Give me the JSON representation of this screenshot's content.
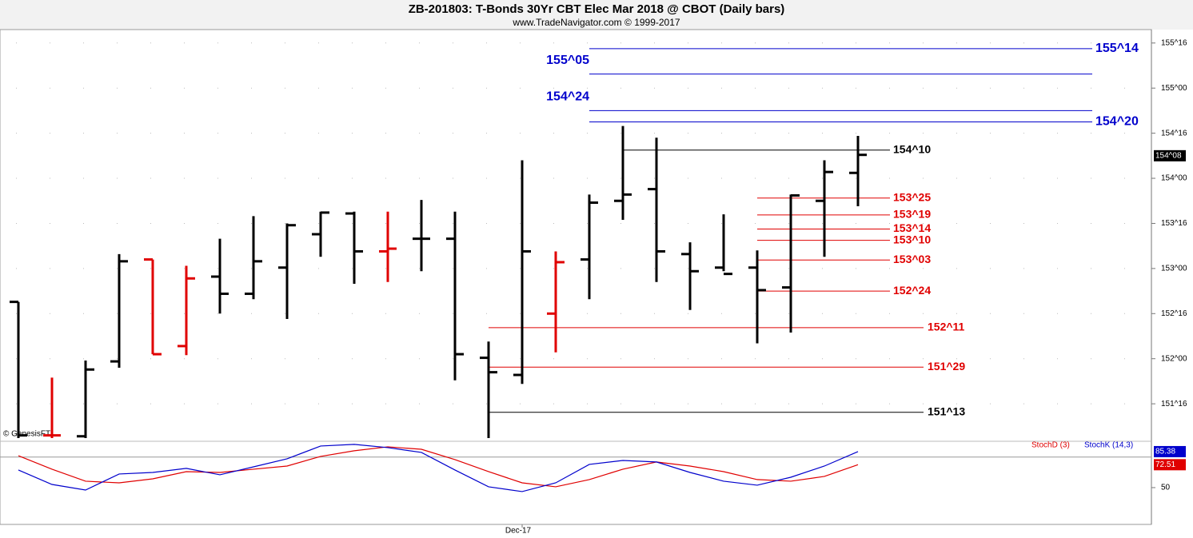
{
  "chart_data": {
    "type": "ohlc",
    "title": "ZB-201803:  T-Bonds 30Yr CBT Elec Mar 2018 @ CBOT  (Daily bars)",
    "subtitle": "www.TradeNavigator.com © 1999-2017",
    "watermark": "© GenesisFT",
    "categories": [
      null,
      null,
      null,
      null,
      null,
      null,
      null,
      null,
      null,
      null,
      null,
      null,
      null,
      null,
      null,
      "Dec-17",
      null,
      null,
      null,
      null,
      null,
      null,
      null,
      null,
      null,
      null
    ],
    "open": [
      152.63,
      151.15,
      151.14,
      151.97,
      153.1,
      152.14,
      152.91,
      152.72,
      153.01,
      153.38,
      153.61,
      153.19,
      153.33,
      153.33,
      152.01,
      151.82,
      152.5,
      153.1,
      153.75,
      153.88,
      153.16,
      153.01,
      153.01,
      152.79,
      153.75,
      154.06
    ],
    "high": [
      152.63,
      151.79,
      151.98,
      153.16,
      153.1,
      153.03,
      153.33,
      153.58,
      153.5,
      153.63,
      153.63,
      153.63,
      153.76,
      153.63,
      152.19,
      154.2,
      153.19,
      153.82,
      154.58,
      154.45,
      153.29,
      153.6,
      153.2,
      153.82,
      154.2,
      154.47
    ],
    "low": [
      151.12,
      151.12,
      151.12,
      151.9,
      152.05,
      152.04,
      152.5,
      152.66,
      152.44,
      153.13,
      152.83,
      152.85,
      152.97,
      151.76,
      151.12,
      151.72,
      152.07,
      152.66,
      153.54,
      152.85,
      152.54,
      152.97,
      152.17,
      152.29,
      153.13,
      153.69
    ],
    "close": [
      151.15,
      151.15,
      151.88,
      153.08,
      152.05,
      152.89,
      152.72,
      153.08,
      153.48,
      153.62,
      153.19,
      153.22,
      153.33,
      152.05,
      151.85,
      153.19,
      153.07,
      153.73,
      153.82,
      153.19,
      152.97,
      152.94,
      152.76,
      153.81,
      154.07,
      154.26
    ],
    "colors": [
      "#000000",
      "#e00000",
      "#000000",
      "#000000",
      "#e00000",
      "#e00000",
      "#000000",
      "#000000",
      "#000000",
      "#000000",
      "#000000",
      "#e00000",
      "#000000",
      "#000000",
      "#000000",
      "#000000",
      "#e00000",
      "#000000",
      "#000000",
      "#000000",
      "#000000",
      "#000000",
      "#000000",
      "#000000",
      "#000000",
      "#000000"
    ],
    "ylim": [
      151.12,
      155.64
    ],
    "yticks": [
      {
        "value": 151.5,
        "label": "151^16"
      },
      {
        "value": 152,
        "label": "152^00"
      },
      {
        "value": 152.5,
        "label": "152^16"
      },
      {
        "value": 153,
        "label": "153^00"
      },
      {
        "value": 153.5,
        "label": "153^16"
      },
      {
        "value": 154,
        "label": "154^00"
      },
      {
        "value": 154.5,
        "label": "154^16"
      },
      {
        "value": 155,
        "label": "155^00"
      },
      {
        "value": 155.5,
        "label": "155^16"
      }
    ],
    "last": {
      "value": 154.25,
      "label": "154^08"
    },
    "grid": true,
    "levels": [
      {
        "value": 155.4375,
        "label": "155^14",
        "color": "#0000cc"
      },
      {
        "value": 155.15625,
        "label": "155^05",
        "color": "#0000cc"
      },
      {
        "value": 154.75,
        "label": "154^24",
        "color": "#0000cc"
      },
      {
        "value": 154.625,
        "label": "154^20",
        "color": "#0000cc"
      },
      {
        "value": 154.3125,
        "label": "154^10",
        "color": "#000000"
      },
      {
        "value": 153.78125,
        "label": "153^25",
        "color": "#e00000"
      },
      {
        "value": 153.59375,
        "label": "153^19",
        "color": "#e00000"
      },
      {
        "value": 153.4375,
        "label": "153^14",
        "color": "#e00000"
      },
      {
        "value": 153.3125,
        "label": "153^10",
        "color": "#e00000"
      },
      {
        "value": 153.09375,
        "label": "153^03",
        "color": "#e00000"
      },
      {
        "value": 152.75,
        "label": "152^24",
        "color": "#e00000"
      },
      {
        "value": 152.34375,
        "label": "152^11",
        "color": "#e00000"
      },
      {
        "value": 151.90625,
        "label": "151^29",
        "color": "#e00000"
      },
      {
        "value": 151.40625,
        "label": "151^13",
        "color": "#000000"
      }
    ],
    "y2lim": [
      14.6,
      93.2
    ],
    "y2ticks": [
      50
    ],
    "overbought": 80,
    "series": [
      {
        "name": "StochD (3)",
        "color": "#e00000",
        "axis": "y2",
        "values": [
          81.4,
          68.1,
          56.3,
          54.7,
          58.6,
          65.7,
          64.9,
          68.1,
          71.2,
          80.7,
          86.2,
          90.1,
          87.7,
          77.5,
          65.7,
          54.7,
          50.8,
          57.9,
          68.1,
          75.2,
          71.2,
          65.7,
          57.9,
          56.3,
          61.0,
          72.51
        ]
      },
      {
        "name": "StochK (14,3)",
        "color": "#0000cc",
        "axis": "y2",
        "values": [
          67.3,
          53.1,
          47.6,
          63.4,
          64.9,
          68.9,
          62.6,
          70.4,
          78.3,
          90.9,
          92.5,
          89.3,
          84.6,
          67.3,
          50.8,
          46.1,
          54.7,
          72.8,
          76.7,
          75.2,
          64.9,
          56.3,
          52.4,
          60.2,
          71.2,
          85.38
        ]
      }
    ]
  }
}
